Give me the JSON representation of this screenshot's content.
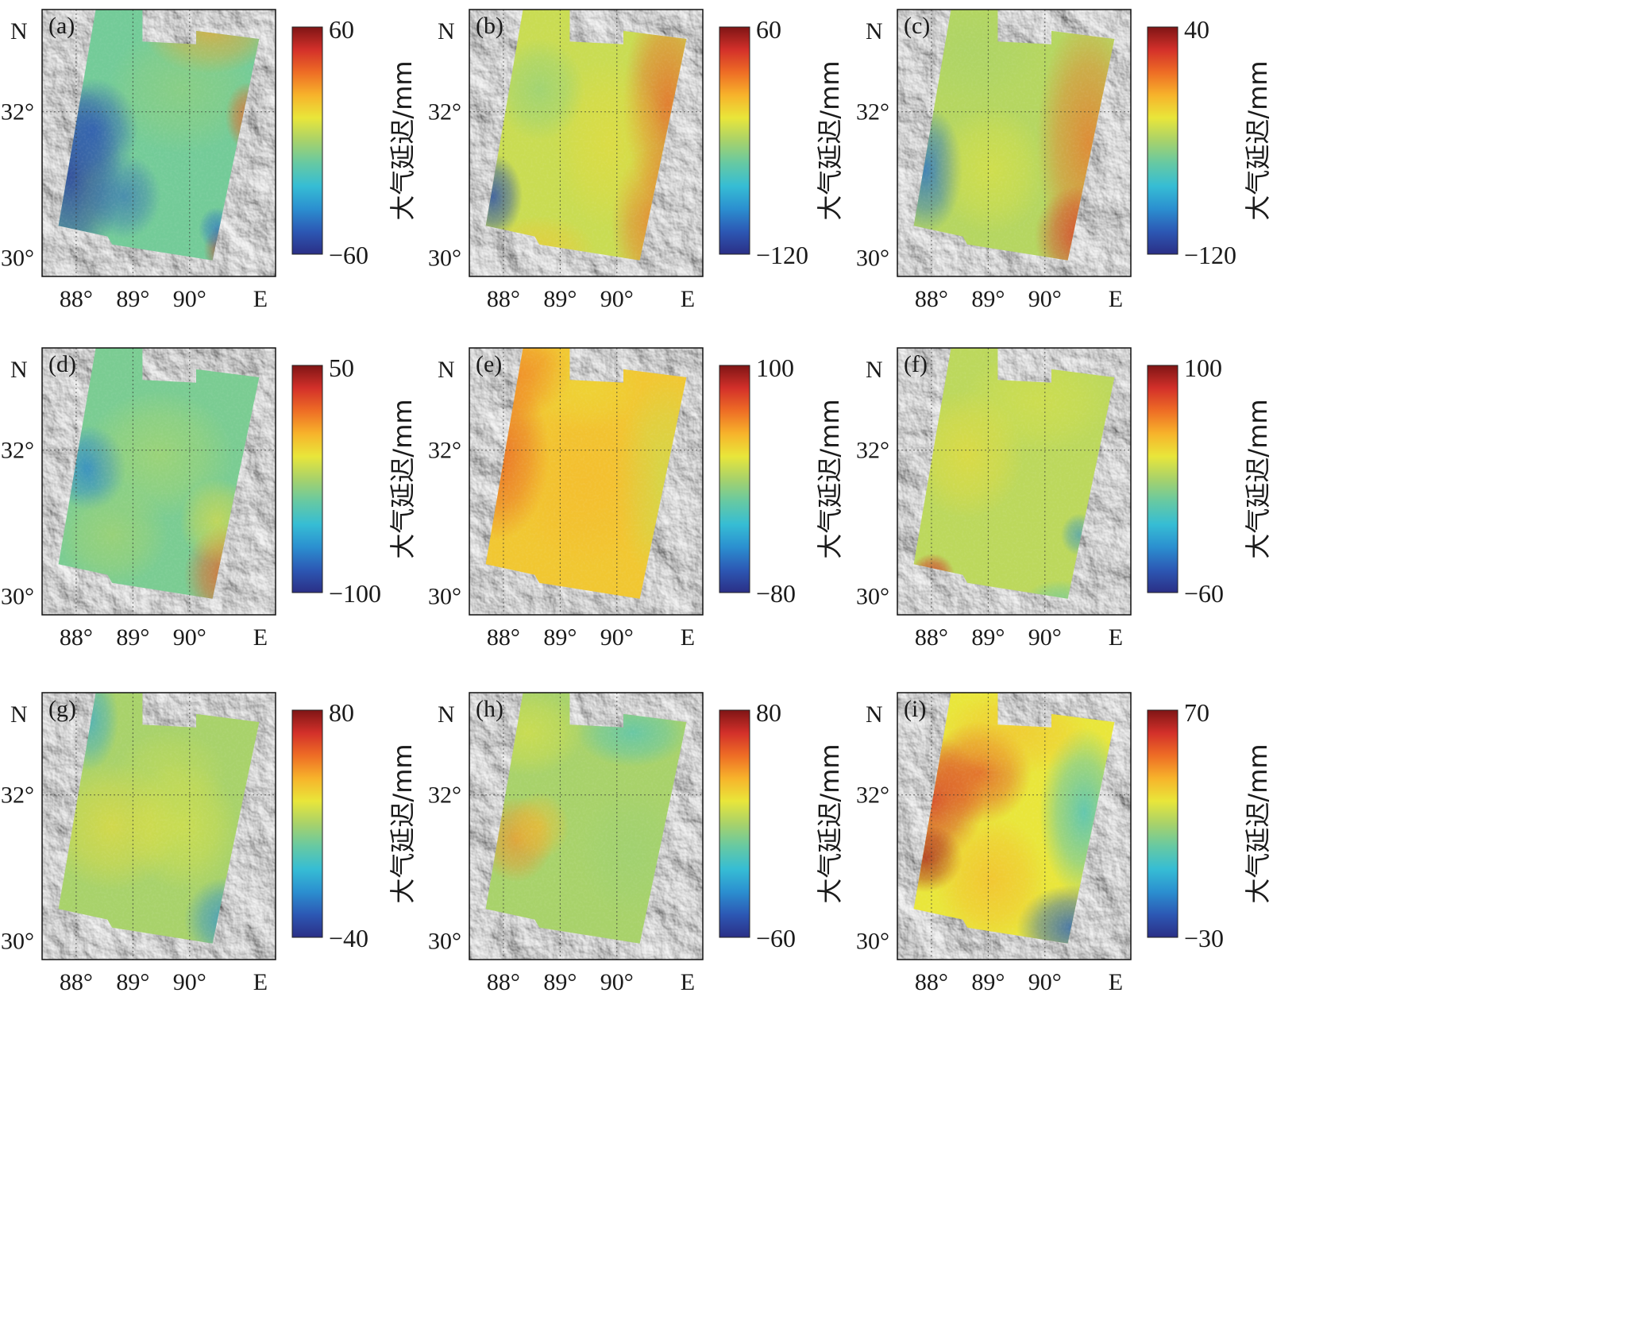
{
  "figure": {
    "axis_labels": {
      "north": "N",
      "east": "E"
    },
    "lat_ticks": [
      "32°",
      "30°"
    ],
    "lon_ticks": [
      "88°",
      "89°",
      "90°"
    ],
    "colorbar_label": "大气延迟/mm",
    "colormap": [
      "#2b2f86",
      "#2c58b4",
      "#2b8fd0",
      "#36bdd4",
      "#66c9a3",
      "#a8d26a",
      "#e9e63a",
      "#f7b32b",
      "#ee6d25",
      "#d3302a",
      "#7f1515"
    ],
    "panels": [
      {
        "label": "(a)",
        "cb_max": "60",
        "cb_min": "−60",
        "pattern": "a"
      },
      {
        "label": "(b)",
        "cb_max": "60",
        "cb_min": "−120",
        "pattern": "b"
      },
      {
        "label": "(c)",
        "cb_max": "40",
        "cb_min": "−120",
        "pattern": "c"
      },
      {
        "label": "(d)",
        "cb_max": "50",
        "cb_min": "−100",
        "pattern": "d"
      },
      {
        "label": "(e)",
        "cb_max": "100",
        "cb_min": "−80",
        "pattern": "e"
      },
      {
        "label": "(f)",
        "cb_max": "100",
        "cb_min": "−60",
        "pattern": "f"
      },
      {
        "label": "(g)",
        "cb_max": "80",
        "cb_min": "−40",
        "pattern": "g"
      },
      {
        "label": "(h)",
        "cb_max": "80",
        "cb_min": "−60",
        "pattern": "h"
      },
      {
        "label": "(i)",
        "cb_max": "70",
        "cb_min": "−30",
        "pattern": "i"
      }
    ]
  }
}
